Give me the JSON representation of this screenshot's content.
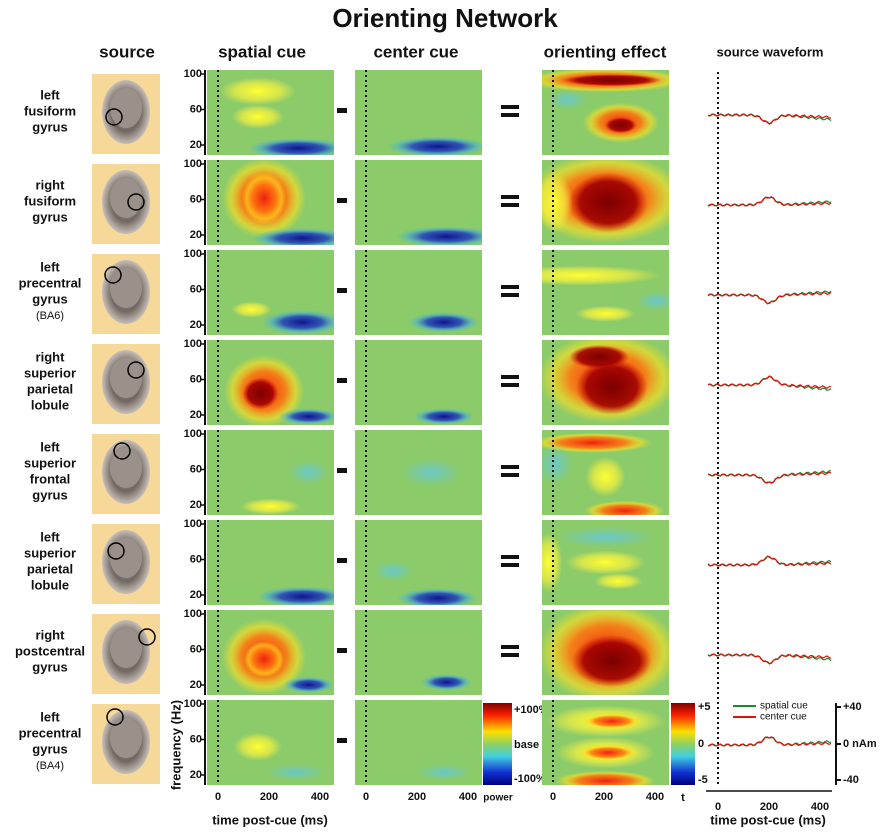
{
  "title": "Orienting Network",
  "columns": [
    "source",
    "spatial cue",
    "center cue",
    "orienting effect",
    "source waveform"
  ],
  "rows": [
    {
      "lines": [
        "left",
        "fusiform",
        "gyrus"
      ]
    },
    {
      "lines": [
        "right",
        "fusiform",
        "gyrus"
      ]
    },
    {
      "lines": [
        "left",
        "precentral",
        "gyrus"
      ],
      "note": "(BA6)"
    },
    {
      "lines": [
        "right",
        "superior",
        "parietal",
        "lobule"
      ]
    },
    {
      "lines": [
        "left",
        "superior",
        "frontal",
        "gyrus"
      ]
    },
    {
      "lines": [
        "left",
        "superior",
        "parietal",
        "lobule"
      ]
    },
    {
      "lines": [
        "right",
        "postcentral",
        "gyrus"
      ]
    },
    {
      "lines": [
        "left",
        "precentral",
        "gyrus"
      ],
      "note": "(BA4)"
    }
  ],
  "frequency_ticks": [
    100,
    60,
    20
  ],
  "time_ticks": [
    0,
    200,
    400
  ],
  "y_label": "frequency (Hz)",
  "x_label": "time post-cue (ms)",
  "power_bar": {
    "labels": [
      "+100%",
      "base",
      "-100%"
    ],
    "title": "power"
  },
  "t_bar": {
    "labels": [
      "+5",
      "0",
      "-5"
    ],
    "title": "t"
  },
  "waveform": {
    "legend": [
      "spatial cue",
      "center cue"
    ],
    "ticks": [
      "+40",
      "0 nAm",
      "-40"
    ]
  }
}
